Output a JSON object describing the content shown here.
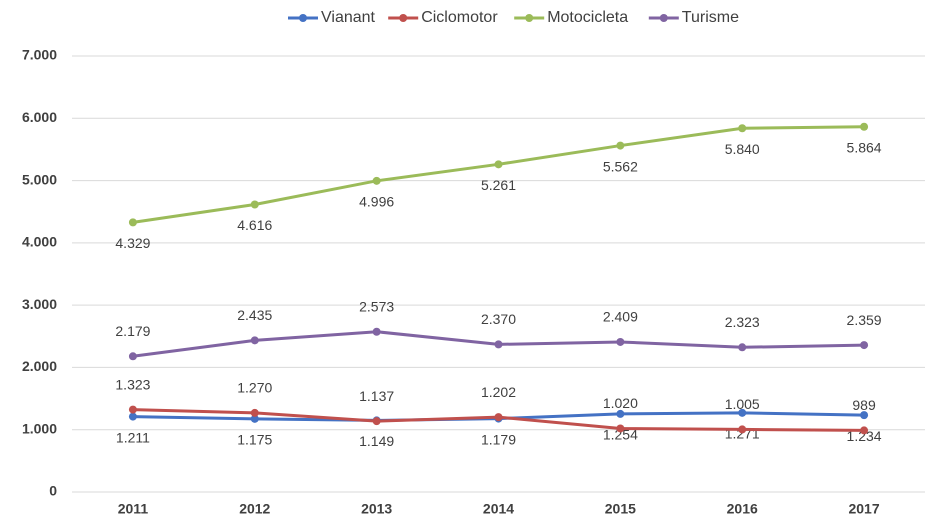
{
  "chart_data": {
    "type": "line",
    "categories": [
      "2011",
      "2012",
      "2013",
      "2014",
      "2015",
      "2016",
      "2017"
    ],
    "series": [
      {
        "name": "Vianant",
        "color": "#4472c4",
        "label_position": "below",
        "values": [
          1211,
          1175,
          1149,
          1179,
          1254,
          1271,
          1234
        ],
        "value_labels": [
          "1.211",
          "1.175",
          "1.149",
          "1.179",
          "1.254",
          "1.271",
          "1.234"
        ]
      },
      {
        "name": "Ciclomotor",
        "color": "#c0504d",
        "label_position": "above",
        "values": [
          1323,
          1270,
          1137,
          1202,
          1020,
          1005,
          989
        ],
        "value_labels": [
          "1.323",
          "1.270",
          "1.137",
          "1.202",
          "1.020",
          "1.005",
          "989"
        ]
      },
      {
        "name": "Motocicleta",
        "color": "#9bbb59",
        "label_position": "below",
        "values": [
          4329,
          4616,
          4996,
          5261,
          5562,
          5840,
          5864
        ],
        "value_labels": [
          "4.329",
          "4.616",
          "4.996",
          "5.261",
          "5.562",
          "5.840",
          "5.864"
        ]
      },
      {
        "name": "Turisme",
        "color": "#8064a2",
        "label_position": "above",
        "values": [
          2179,
          2435,
          2573,
          2370,
          2409,
          2323,
          2359
        ],
        "value_labels": [
          "2.179",
          "2.435",
          "2.573",
          "2.370",
          "2.409",
          "2.323",
          "2.359"
        ]
      }
    ],
    "ylim": [
      0,
      7000
    ],
    "yticks": [
      0,
      {
        "value": 1000,
        "label": "1.000"
      },
      {
        "value": 2000,
        "label": "2.000"
      },
      {
        "value": 3000,
        "label": "3.000"
      },
      {
        "value": 4000,
        "label": "4.000"
      },
      {
        "value": 5000,
        "label": "5.000"
      },
      {
        "value": 6000,
        "label": "6.000"
      },
      {
        "value": 7000,
        "label": "7.000"
      }
    ],
    "grid": true,
    "legend": "top"
  }
}
